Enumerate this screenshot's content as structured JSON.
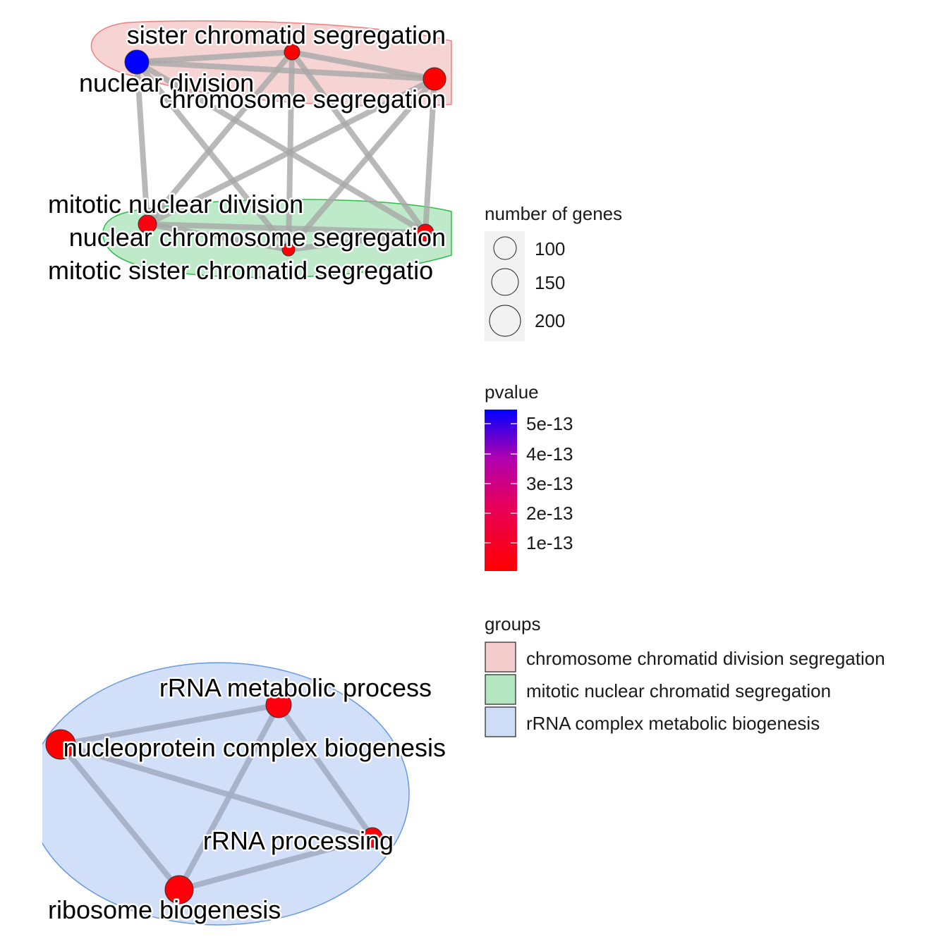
{
  "diagram": {
    "type": "enrichment-network",
    "nodes": [
      {
        "id": "sister_chromatid_segregation",
        "label": "sister chromatid segregation",
        "color": "#ff0000"
      },
      {
        "id": "nuclear_division",
        "label": "nuclear division",
        "color": "#0000ff"
      },
      {
        "id": "chromosome_segregation",
        "label": "chromosome segregation",
        "color": "#ff0000"
      },
      {
        "id": "mitotic_nuclear_division",
        "label": "mitotic nuclear division",
        "color": "#ff0010"
      },
      {
        "id": "nuclear_chromosome_segregation",
        "label": "nuclear chromosome segregation",
        "color": "#ff0008"
      },
      {
        "id": "mitotic_sister_chromatid_segregation",
        "label": "mitotic sister chromatid segregatio",
        "color": "#ff0008"
      },
      {
        "id": "rrna_metabolic_process",
        "label": "rRNA metabolic process",
        "color": "#ff0010"
      },
      {
        "id": "ribonucleoprotein_complex_biogenesis",
        "label": "nucleoprotein complex biogenesis",
        "color": "#ff0000"
      },
      {
        "id": "rrna_processing",
        "label": "rRNA processing",
        "color": "#ff0008"
      },
      {
        "id": "ribosome_biogenesis",
        "label": "ribosome biogenesis",
        "color": "#ff0008"
      }
    ],
    "edges": [
      [
        "nuclear_division",
        "sister_chromatid_segregation"
      ],
      [
        "nuclear_division",
        "chromosome_segregation"
      ],
      [
        "sister_chromatid_segregation",
        "chromosome_segregation"
      ],
      [
        "nuclear_division",
        "mitotic_nuclear_division"
      ],
      [
        "nuclear_division",
        "nuclear_chromosome_segregation"
      ],
      [
        "nuclear_division",
        "mitotic_sister_chromatid_segregation"
      ],
      [
        "sister_chromatid_segregation",
        "mitotic_nuclear_division"
      ],
      [
        "sister_chromatid_segregation",
        "nuclear_chromosome_segregation"
      ],
      [
        "sister_chromatid_segregation",
        "mitotic_sister_chromatid_segregation"
      ],
      [
        "chromosome_segregation",
        "mitotic_nuclear_division"
      ],
      [
        "chromosome_segregation",
        "nuclear_chromosome_segregation"
      ],
      [
        "chromosome_segregation",
        "mitotic_sister_chromatid_segregation"
      ],
      [
        "mitotic_nuclear_division",
        "nuclear_chromosome_segregation"
      ],
      [
        "mitotic_nuclear_division",
        "mitotic_sister_chromatid_segregation"
      ],
      [
        "nuclear_chromosome_segregation",
        "mitotic_sister_chromatid_segregation"
      ],
      [
        "ribonucleoprotein_complex_biogenesis",
        "rrna_metabolic_process"
      ],
      [
        "ribonucleoprotein_complex_biogenesis",
        "rrna_processing"
      ],
      [
        "ribonucleoprotein_complex_biogenesis",
        "ribosome_biogenesis"
      ],
      [
        "rrna_metabolic_process",
        "rrna_processing"
      ],
      [
        "rrna_metabolic_process",
        "ribosome_biogenesis"
      ],
      [
        "rrna_processing",
        "ribosome_biogenesis"
      ]
    ],
    "groups": [
      {
        "id": "chromosome_chromatid_division_segregation",
        "fill": "#f4cccc",
        "stroke": "#f08080"
      },
      {
        "id": "mitotic_nuclear_chromatid_segregation",
        "fill": "#b3e6c0",
        "stroke": "#2ebd4a"
      },
      {
        "id": "rrna_complex_metabolic_biogenesis",
        "fill": "#cddcf7",
        "stroke": "#6699e6"
      }
    ]
  },
  "legend": {
    "size": {
      "title": "number of genes",
      "items": [
        {
          "label": "100"
        },
        {
          "label": "150"
        },
        {
          "label": "200"
        }
      ]
    },
    "color": {
      "title": "pvalue",
      "low_color": "#ff0000",
      "high_color": "#0000ff",
      "ticks": [
        "5e-13",
        "4e-13",
        "3e-13",
        "2e-13",
        "1e-13"
      ]
    },
    "groups": {
      "title": "groups",
      "items": [
        {
          "label": "chromosome chromatid division segregation",
          "fill": "#f4cccc"
        },
        {
          "label": "mitotic nuclear chromatid segregation",
          "fill": "#b3e6c0"
        },
        {
          "label": "rRNA complex metabolic biogenesis",
          "fill": "#cddcf7"
        }
      ]
    }
  }
}
